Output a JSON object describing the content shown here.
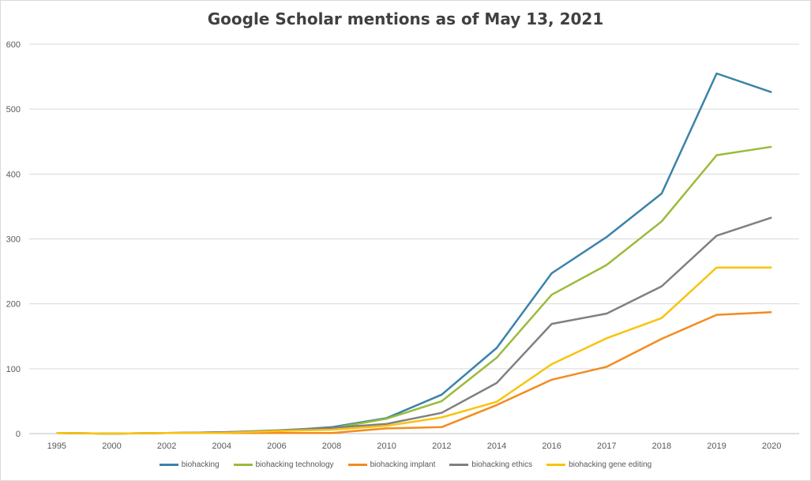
{
  "chart_data": {
    "type": "line",
    "title": "Google Scholar mentions as of May 13, 2021",
    "xlabel": "",
    "ylabel": "",
    "categories": [
      "1995",
      "2000",
      "2002",
      "2004",
      "2006",
      "2008",
      "2010",
      "2012",
      "2014",
      "2016",
      "2017",
      "2018",
      "2019",
      "2020"
    ],
    "ylim": [
      0,
      600
    ],
    "yticks": [
      "0",
      "100",
      "200",
      "300",
      "400",
      "500",
      "600"
    ],
    "grid": true,
    "legend_position": "bottom",
    "series": [
      {
        "name": "biohacking",
        "color": "#3a83a8",
        "values": [
          1,
          0,
          1,
          2,
          4,
          10,
          24,
          60,
          132,
          247,
          303,
          370,
          555,
          526
        ]
      },
      {
        "name": "biohacking technology",
        "color": "#9bbb3b",
        "values": [
          1,
          0,
          1,
          2,
          4,
          8,
          23,
          50,
          117,
          214,
          260,
          327,
          429,
          442
        ]
      },
      {
        "name": "biohacking implant",
        "color": "#f28c1f",
        "values": [
          1,
          0,
          1,
          1,
          1,
          1,
          8,
          10,
          44,
          83,
          103,
          146,
          183,
          187
        ]
      },
      {
        "name": "biohacking ethics",
        "color": "#808080",
        "values": [
          1,
          0,
          1,
          2,
          5,
          9,
          15,
          32,
          78,
          169,
          185,
          227,
          305,
          333
        ]
      },
      {
        "name": "biohacking gene editing",
        "color": "#f9c30f",
        "values": [
          1,
          0,
          1,
          1,
          4,
          6,
          12,
          25,
          49,
          107,
          147,
          178,
          256,
          256
        ]
      }
    ]
  }
}
